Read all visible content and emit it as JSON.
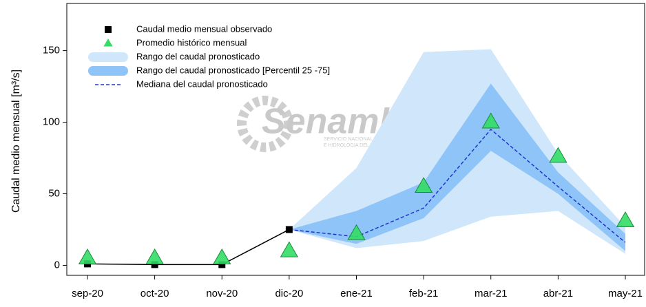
{
  "chart_data": {
    "type": "line",
    "ylabel": "Caudal medio mensual  [m³/s]",
    "watermark": {
      "title": "Senamhi",
      "subtitle": [
        "SERVICIO NACIONAL DE METEOROLOGIA",
        "E HIDROLOGIA DEL PERU"
      ]
    },
    "categories": [
      "sep-20",
      "oct-20",
      "nov-20",
      "dic-20",
      "ene-21",
      "feb-21",
      "mar-21",
      "abr-21",
      "may-21"
    ],
    "ylim": [
      -7,
      183
    ],
    "yticks": [
      0,
      50,
      100,
      150
    ],
    "legend": "upper left",
    "series": [
      {
        "name": "Caudal medio mensual observado",
        "kind": "line-square",
        "color": "#000000",
        "values": [
          1,
          0.5,
          0.5,
          25,
          null,
          null,
          null,
          null,
          null
        ]
      },
      {
        "name": "Promedio histórico mensual",
        "kind": "triangle",
        "color": "#33dd66",
        "values": [
          5,
          5,
          5,
          10,
          22,
          55,
          100,
          76,
          31
        ]
      },
      {
        "name": "Rango del caudal pronosticado",
        "kind": "band",
        "color": "#cfe6fb",
        "lower": [
          null,
          null,
          null,
          25,
          12,
          17,
          34,
          38,
          8
        ],
        "values": [
          null,
          null,
          null,
          25,
          68,
          149,
          151,
          78,
          27
        ]
      },
      {
        "name": "Rango del caudal pronosticado [Percentil 25 -75]",
        "kind": "band",
        "color": "#8ec4f7",
        "lower": [
          null,
          null,
          null,
          25,
          15,
          33,
          80,
          50,
          10
        ],
        "values": [
          null,
          null,
          null,
          25,
          38,
          58,
          127,
          65,
          22
        ]
      },
      {
        "name": "Mediana del caudal pronosticado",
        "kind": "dashed",
        "color": "#2233cc",
        "values": [
          null,
          null,
          null,
          25,
          20,
          40,
          95,
          55,
          16
        ]
      }
    ]
  }
}
